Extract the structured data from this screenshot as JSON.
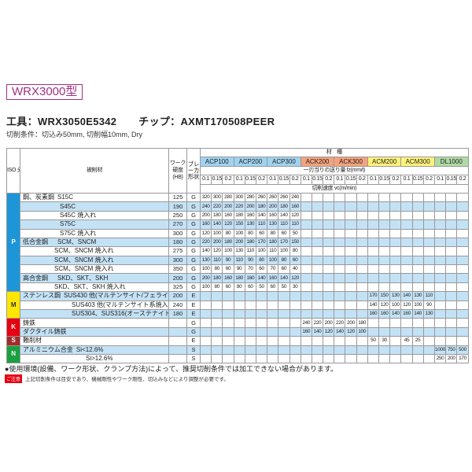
{
  "title": "WRX3000型",
  "tool": "工具：WRX3050E5342",
  "chip": "チップ：AXMT170508PEER",
  "conditions": "切削条件：切込み50mm, 切削幅10mm, Dry",
  "header": {
    "iso": "ISO 分類",
    "material": "被削材",
    "hardness": "ワーク 硬度 (HB)",
    "breaker": "ブレーカ形状",
    "grade_title": "材　種",
    "feed_label": "一刃当りの送り量 fz(mm/t)",
    "speed_label": "切削速度 vc(m/min)",
    "grades": [
      {
        "name": "ACP100",
        "color": "#9fd3f0"
      },
      {
        "name": "ACP200",
        "color": "#9fd3f0"
      },
      {
        "name": "ACP300",
        "color": "#9fd3f0"
      },
      {
        "name": "ACK200",
        "color": "#f5a27c"
      },
      {
        "name": "ACK300",
        "color": "#f5a27c"
      },
      {
        "name": "ACM200",
        "color": "#fff27a"
      },
      {
        "name": "ACM300",
        "color": "#fff27a"
      },
      {
        "name": "DL1000",
        "color": "#aedaa4"
      }
    ],
    "feeds": [
      "0.1",
      "0.15",
      "0.2"
    ]
  },
  "iso_groups": [
    {
      "code": "P",
      "color": "#1c96d8",
      "rows": 11
    },
    {
      "code": "M",
      "color": "#ffe600",
      "rows": 3,
      "text_color": "#333"
    },
    {
      "code": "K",
      "color": "#e60012",
      "rows": 2
    },
    {
      "code": "S",
      "color": "#a52a2a",
      "rows": 1
    },
    {
      "code": "N",
      "color": "#1aa040",
      "rows": 2
    }
  ],
  "rows": [
    {
      "group": "鋼、炭素鋼",
      "name": "S15C",
      "hb": "125",
      "breaker": "G",
      "v": [
        "320",
        "300",
        "280",
        "300",
        "280",
        "260",
        "260",
        "260",
        "240",
        "",
        "",
        "",
        "",
        "",
        "",
        "",
        "",
        "",
        "",
        "",
        "",
        "",
        "",
        ""
      ]
    },
    {
      "group": "",
      "name": "S45C",
      "hb": "190",
      "breaker": "G",
      "v": [
        "240",
        "220",
        "200",
        "220",
        "200",
        "180",
        "200",
        "180",
        "160",
        "",
        "",
        "",
        "",
        "",
        "",
        "",
        "",
        "",
        "",
        "",
        "",
        "",
        "",
        ""
      ]
    },
    {
      "group": "",
      "name": "S45C 焼入れ",
      "hb": "250",
      "breaker": "G",
      "v": [
        "200",
        "180",
        "160",
        "180",
        "160",
        "140",
        "160",
        "140",
        "120",
        "",
        "",
        "",
        "",
        "",
        "",
        "",
        "",
        "",
        "",
        "",
        "",
        "",
        "",
        ""
      ]
    },
    {
      "group": "",
      "name": "S75C",
      "hb": "270",
      "breaker": "G",
      "v": [
        "160",
        "140",
        "120",
        "150",
        "130",
        "110",
        "130",
        "110",
        "110",
        "",
        "",
        "",
        "",
        "",
        "",
        "",
        "",
        "",
        "",
        "",
        "",
        "",
        "",
        ""
      ]
    },
    {
      "group": "",
      "name": "S75C 焼入れ",
      "hb": "300",
      "breaker": "G",
      "v": [
        "120",
        "100",
        "80",
        "100",
        "80",
        "60",
        "80",
        "60",
        "50",
        "",
        "",
        "",
        "",
        "",
        "",
        "",
        "",
        "",
        "",
        "",
        "",
        "",
        "",
        ""
      ]
    },
    {
      "group": "低合金鋼",
      "name": "SCM、SNCM",
      "hb": "180",
      "breaker": "G",
      "v": [
        "220",
        "200",
        "180",
        "200",
        "180",
        "170",
        "180",
        "170",
        "150",
        "",
        "",
        "",
        "",
        "",
        "",
        "",
        "",
        "",
        "",
        "",
        "",
        "",
        "",
        ""
      ]
    },
    {
      "group": "",
      "name": "SCM、SNCM 焼入れ",
      "hb": "275",
      "breaker": "G",
      "v": [
        "140",
        "120",
        "100",
        "130",
        "110",
        "100",
        "110",
        "100",
        "80",
        "",
        "",
        "",
        "",
        "",
        "",
        "",
        "",
        "",
        "",
        "",
        "",
        "",
        "",
        ""
      ]
    },
    {
      "group": "",
      "name": "SCM、SNCM 焼入れ",
      "hb": "300",
      "breaker": "G",
      "v": [
        "130",
        "110",
        "90",
        "110",
        "90",
        "80",
        "100",
        "80",
        "60",
        "",
        "",
        "",
        "",
        "",
        "",
        "",
        "",
        "",
        "",
        "",
        "",
        "",
        "",
        ""
      ]
    },
    {
      "group": "",
      "name": "SCM、SNCM 焼入れ",
      "hb": "350",
      "breaker": "G",
      "v": [
        "100",
        "80",
        "60",
        "90",
        "70",
        "60",
        "70",
        "60",
        "40",
        "",
        "",
        "",
        "",
        "",
        "",
        "",
        "",
        "",
        "",
        "",
        "",
        "",
        "",
        ""
      ]
    },
    {
      "group": "高合金鋼",
      "name": "SKD、SKT、SKH",
      "hb": "200",
      "breaker": "G",
      "v": [
        "200",
        "180",
        "160",
        "180",
        "160",
        "140",
        "160",
        "140",
        "120",
        "",
        "",
        "",
        "",
        "",
        "",
        "",
        "",
        "",
        "",
        "",
        "",
        "",
        "",
        ""
      ]
    },
    {
      "group": "",
      "name": "SKD、SKT、SKH 焼入れ",
      "hb": "325",
      "breaker": "G",
      "v": [
        "100",
        "80",
        "60",
        "80",
        "60",
        "50",
        "60",
        "50",
        "30",
        "",
        "",
        "",
        "",
        "",
        "",
        "",
        "",
        "",
        "",
        "",
        "",
        "",
        "",
        ""
      ]
    },
    {
      "group": "ステンレス鋼",
      "name": "SUS430 他(マルテンサイト/フェライト系)",
      "hb": "200",
      "breaker": "E",
      "v": [
        "",
        "",
        "",
        "",
        "",
        "",
        "",
        "",
        "",
        "",
        "",
        "",
        "",
        "",
        "",
        "170",
        "150",
        "130",
        "140",
        "130",
        "110",
        "",
        "",
        ""
      ]
    },
    {
      "group": "",
      "name": "SUS403 他(マルテンサイト系焼入れ)",
      "hb": "240",
      "breaker": "E",
      "v": [
        "",
        "",
        "",
        "",
        "",
        "",
        "",
        "",
        "",
        "",
        "",
        "",
        "",
        "",
        "",
        "140",
        "120",
        "100",
        "120",
        "100",
        "90",
        "",
        "",
        ""
      ]
    },
    {
      "group": "",
      "name": "SUS304、SUS316(オーステナイト系)",
      "hb": "180",
      "breaker": "E",
      "v": [
        "",
        "",
        "",
        "",
        "",
        "",
        "",
        "",
        "",
        "",
        "",
        "",
        "",
        "",
        "",
        "160",
        "160",
        "140",
        "160",
        "140",
        "130",
        "",
        "",
        ""
      ]
    },
    {
      "group": "鋳鉄",
      "name": "",
      "hb": "",
      "breaker": "G",
      "v": [
        "",
        "",
        "",
        "",
        "",
        "",
        "",
        "",
        "",
        "240",
        "220",
        "200",
        "220",
        "200",
        "180",
        "",
        "",
        "",
        "",
        "",
        "",
        "",
        "",
        ""
      ]
    },
    {
      "group": "ダクタイル鋳鉄",
      "name": "",
      "hb": "",
      "breaker": "G",
      "v": [
        "",
        "",
        "",
        "",
        "",
        "",
        "",
        "",
        "",
        "160",
        "140",
        "120",
        "140",
        "120",
        "100",
        "",
        "",
        "",
        "",
        "",
        "",
        "",
        "",
        ""
      ]
    },
    {
      "group": "難削材",
      "name": "",
      "hb": "",
      "breaker": "E",
      "v": [
        "",
        "",
        "",
        "",
        "",
        "",
        "",
        "",
        "",
        "",
        "",
        "",
        "",
        "",
        "",
        "50",
        "30",
        "",
        "45",
        "25",
        "",
        "",
        "",
        ""
      ]
    },
    {
      "group": "アルミニウム合金",
      "name": "Si<12.6%",
      "hb": "",
      "breaker": "S",
      "v": [
        "",
        "",
        "",
        "",
        "",
        "",
        "",
        "",
        "",
        "",
        "",
        "",
        "",
        "",
        "",
        "",
        "",
        "",
        "",
        "",
        "",
        "1000",
        "750",
        "500"
      ]
    },
    {
      "group": "",
      "name": "Si>12.6%",
      "hb": "",
      "breaker": "S",
      "v": [
        "",
        "",
        "",
        "",
        "",
        "",
        "",
        "",
        "",
        "",
        "",
        "",
        "",
        "",
        "",
        "",
        "",
        "",
        "",
        "",
        "",
        "250",
        "200",
        "170"
      ]
    }
  ],
  "notes": {
    "main": "●使用環境(設備、ワーク形状、クランプ方法)によって、推奨切削条件では加工できない場合があります。",
    "caution_badge": "ご注意",
    "caution": "上記切削条件は目安であり、機械剛性やワーク剛性、切込みなどにより調整が必要です。"
  }
}
